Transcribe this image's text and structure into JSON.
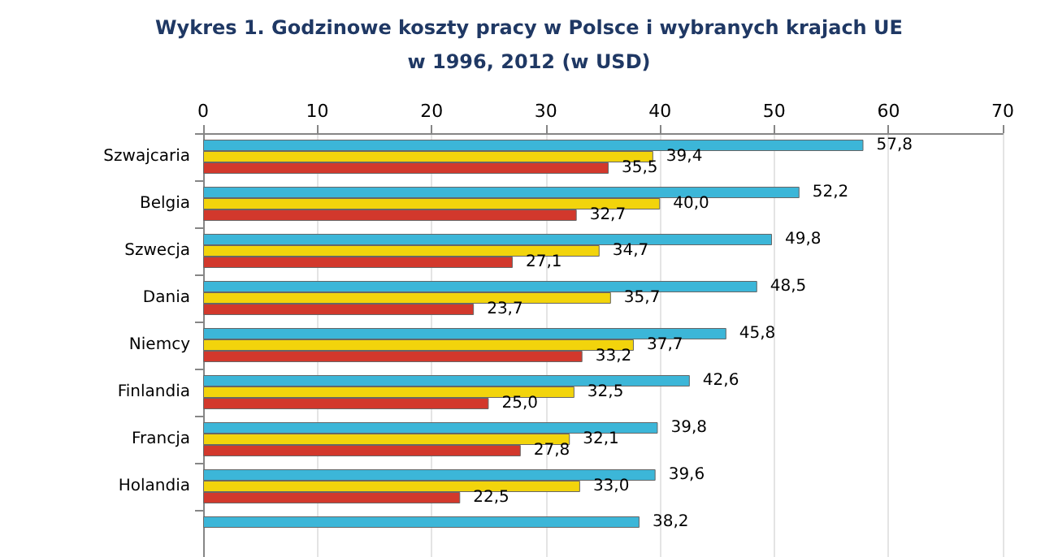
{
  "chart_data": {
    "type": "bar",
    "orientation": "horizontal",
    "title": "Wykres 1. Godzinowe koszty pracy w Polsce i wybranych krajach UE\nw 1996, 2012 (w USD)",
    "categories": [
      "Szwajcaria",
      "Belgia",
      "Szwecja",
      "Dania",
      "Niemcy",
      "Finlandia",
      "Francja",
      "Holandia",
      null
    ],
    "series": [
      {
        "color": "#3cb6d8",
        "values": [
          57.8,
          52.2,
          49.8,
          48.5,
          45.8,
          42.6,
          39.8,
          39.6,
          38.2
        ],
        "value_labels": [
          "57,8",
          "52,2",
          "49,8",
          "48,5",
          "45,8",
          "42,6",
          "39,8",
          "39,6",
          "38,2"
        ]
      },
      {
        "color": "#f2d40c",
        "values": [
          39.4,
          40.0,
          34.7,
          35.7,
          37.7,
          32.5,
          32.1,
          33.0,
          null
        ],
        "value_labels": [
          "39,4",
          "40,0",
          "34,7",
          "35,7",
          "37,7",
          "32,5",
          "32,1",
          "33,0",
          null
        ]
      },
      {
        "color": "#d2382c",
        "values": [
          35.5,
          32.7,
          27.1,
          23.7,
          33.2,
          25.0,
          27.8,
          22.5,
          null
        ],
        "value_labels": [
          "35,5",
          "32,7",
          "27,1",
          "23,7",
          "33,2",
          "25,0",
          "27,8",
          "22,5",
          null
        ]
      }
    ],
    "xlim": [
      0,
      70
    ],
    "xticks": [
      0,
      10,
      20,
      30,
      40,
      50,
      60,
      70
    ],
    "grid": "x"
  }
}
